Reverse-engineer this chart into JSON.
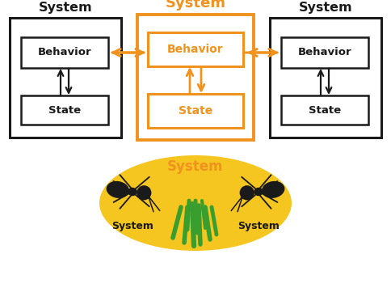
{
  "bg_color": "#ffffff",
  "orange": "#f0921e",
  "black": "#1a1a1a",
  "green": "#3a9e2e",
  "yellow_fill": "#f5c520",
  "top_title_left": "System",
  "top_title_center": "System",
  "top_title_right": "System",
  "behavior_label": "Behavior",
  "state_label": "State",
  "bottom_system_label": "System",
  "bottom_left_label": "System",
  "bottom_right_label": "System",
  "figw": 4.84,
  "figh": 3.56,
  "dpi": 100
}
